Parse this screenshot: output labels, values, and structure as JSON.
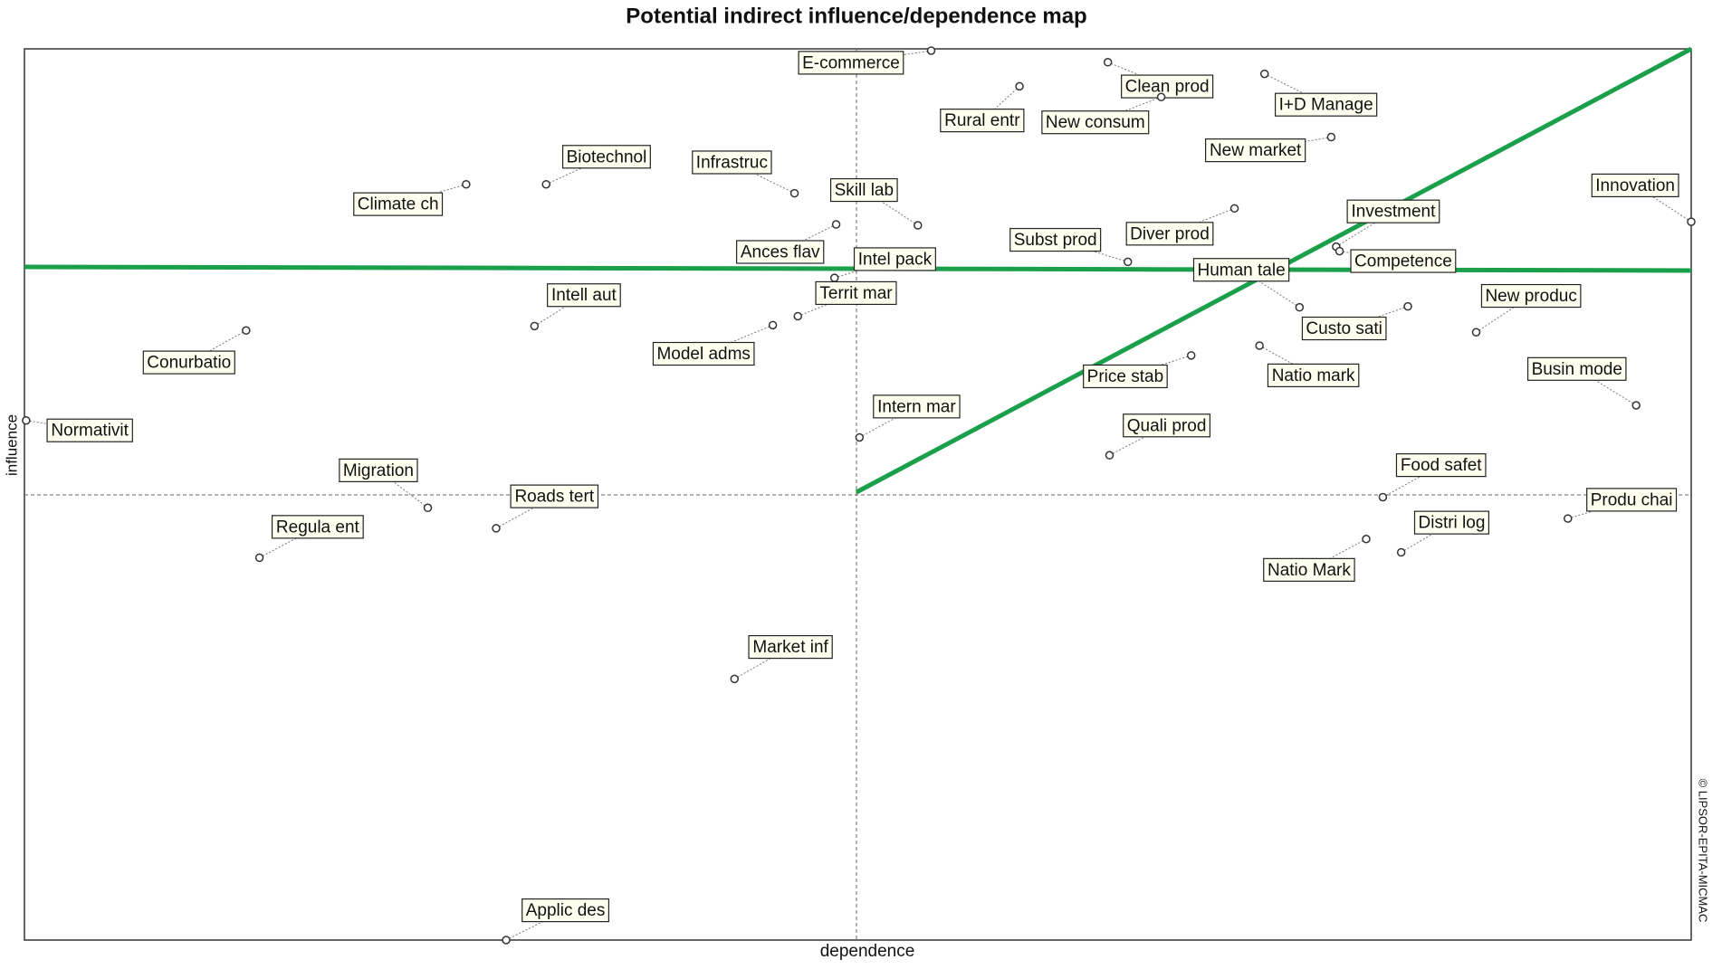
{
  "chart_data": {
    "type": "scatter",
    "title": "Potential indirect influence/dependence map",
    "x_label": "dependence",
    "y_label": "influence",
    "credit": "© LIPSOR-EPITA-MICMAC",
    "xlim": [
      0,
      100
    ],
    "ylim": [
      0,
      100
    ],
    "labels": [
      "E-commerce",
      "Clean prod",
      "Rural entr",
      "New consum",
      "I+D Manage",
      "New market",
      "Biotechnol",
      "Climate ch",
      "Infrastruc",
      "Skill lab",
      "Innovation",
      "Investment",
      "Diver prod",
      "Subst prod",
      "Ances flav",
      "Intel pack",
      "Competence",
      "Human tale",
      "Custo sati",
      "Territ mar",
      "Intell aut",
      "Conurbatio",
      "New produc",
      "Model adms",
      "Natio mark",
      "Price stab",
      "Busin mode",
      "Normativit",
      "Intern mar",
      "Quali prod",
      "Migration",
      "Roads tert",
      "Food safet",
      "Produ chai",
      "Regula ent",
      "Distri log",
      "Natio Mark",
      "Market inf",
      "Applic des"
    ],
    "x": [
      54.4,
      65.0,
      59.7,
      68.2,
      74.4,
      78.4,
      31.3,
      26.5,
      46.2,
      53.6,
      100,
      78.7,
      72.6,
      66.2,
      48.7,
      48.6,
      78.9,
      76.5,
      83.0,
      46.4,
      30.6,
      13.3,
      87.1,
      44.9,
      74.1,
      70.0,
      96.7,
      0.1,
      50.1,
      65.1,
      24.2,
      28.3,
      81.5,
      92.6,
      14.1,
      82.6,
      80.5,
      42.6,
      28.9
    ],
    "values": [
      99.8,
      98.5,
      95.8,
      94.6,
      97.2,
      90.1,
      84.8,
      84.8,
      83.8,
      80.2,
      80.6,
      77.8,
      82.1,
      76.1,
      80.3,
      74.3,
      77.3,
      71.0,
      71.1,
      70.0,
      68.9,
      68.4,
      68.2,
      69.0,
      66.7,
      65.6,
      60.0,
      58.3,
      56.4,
      54.4,
      48.5,
      46.2,
      49.7,
      47.3,
      42.9,
      43.5,
      45.0,
      29.3,
      0
    ]
  }
}
